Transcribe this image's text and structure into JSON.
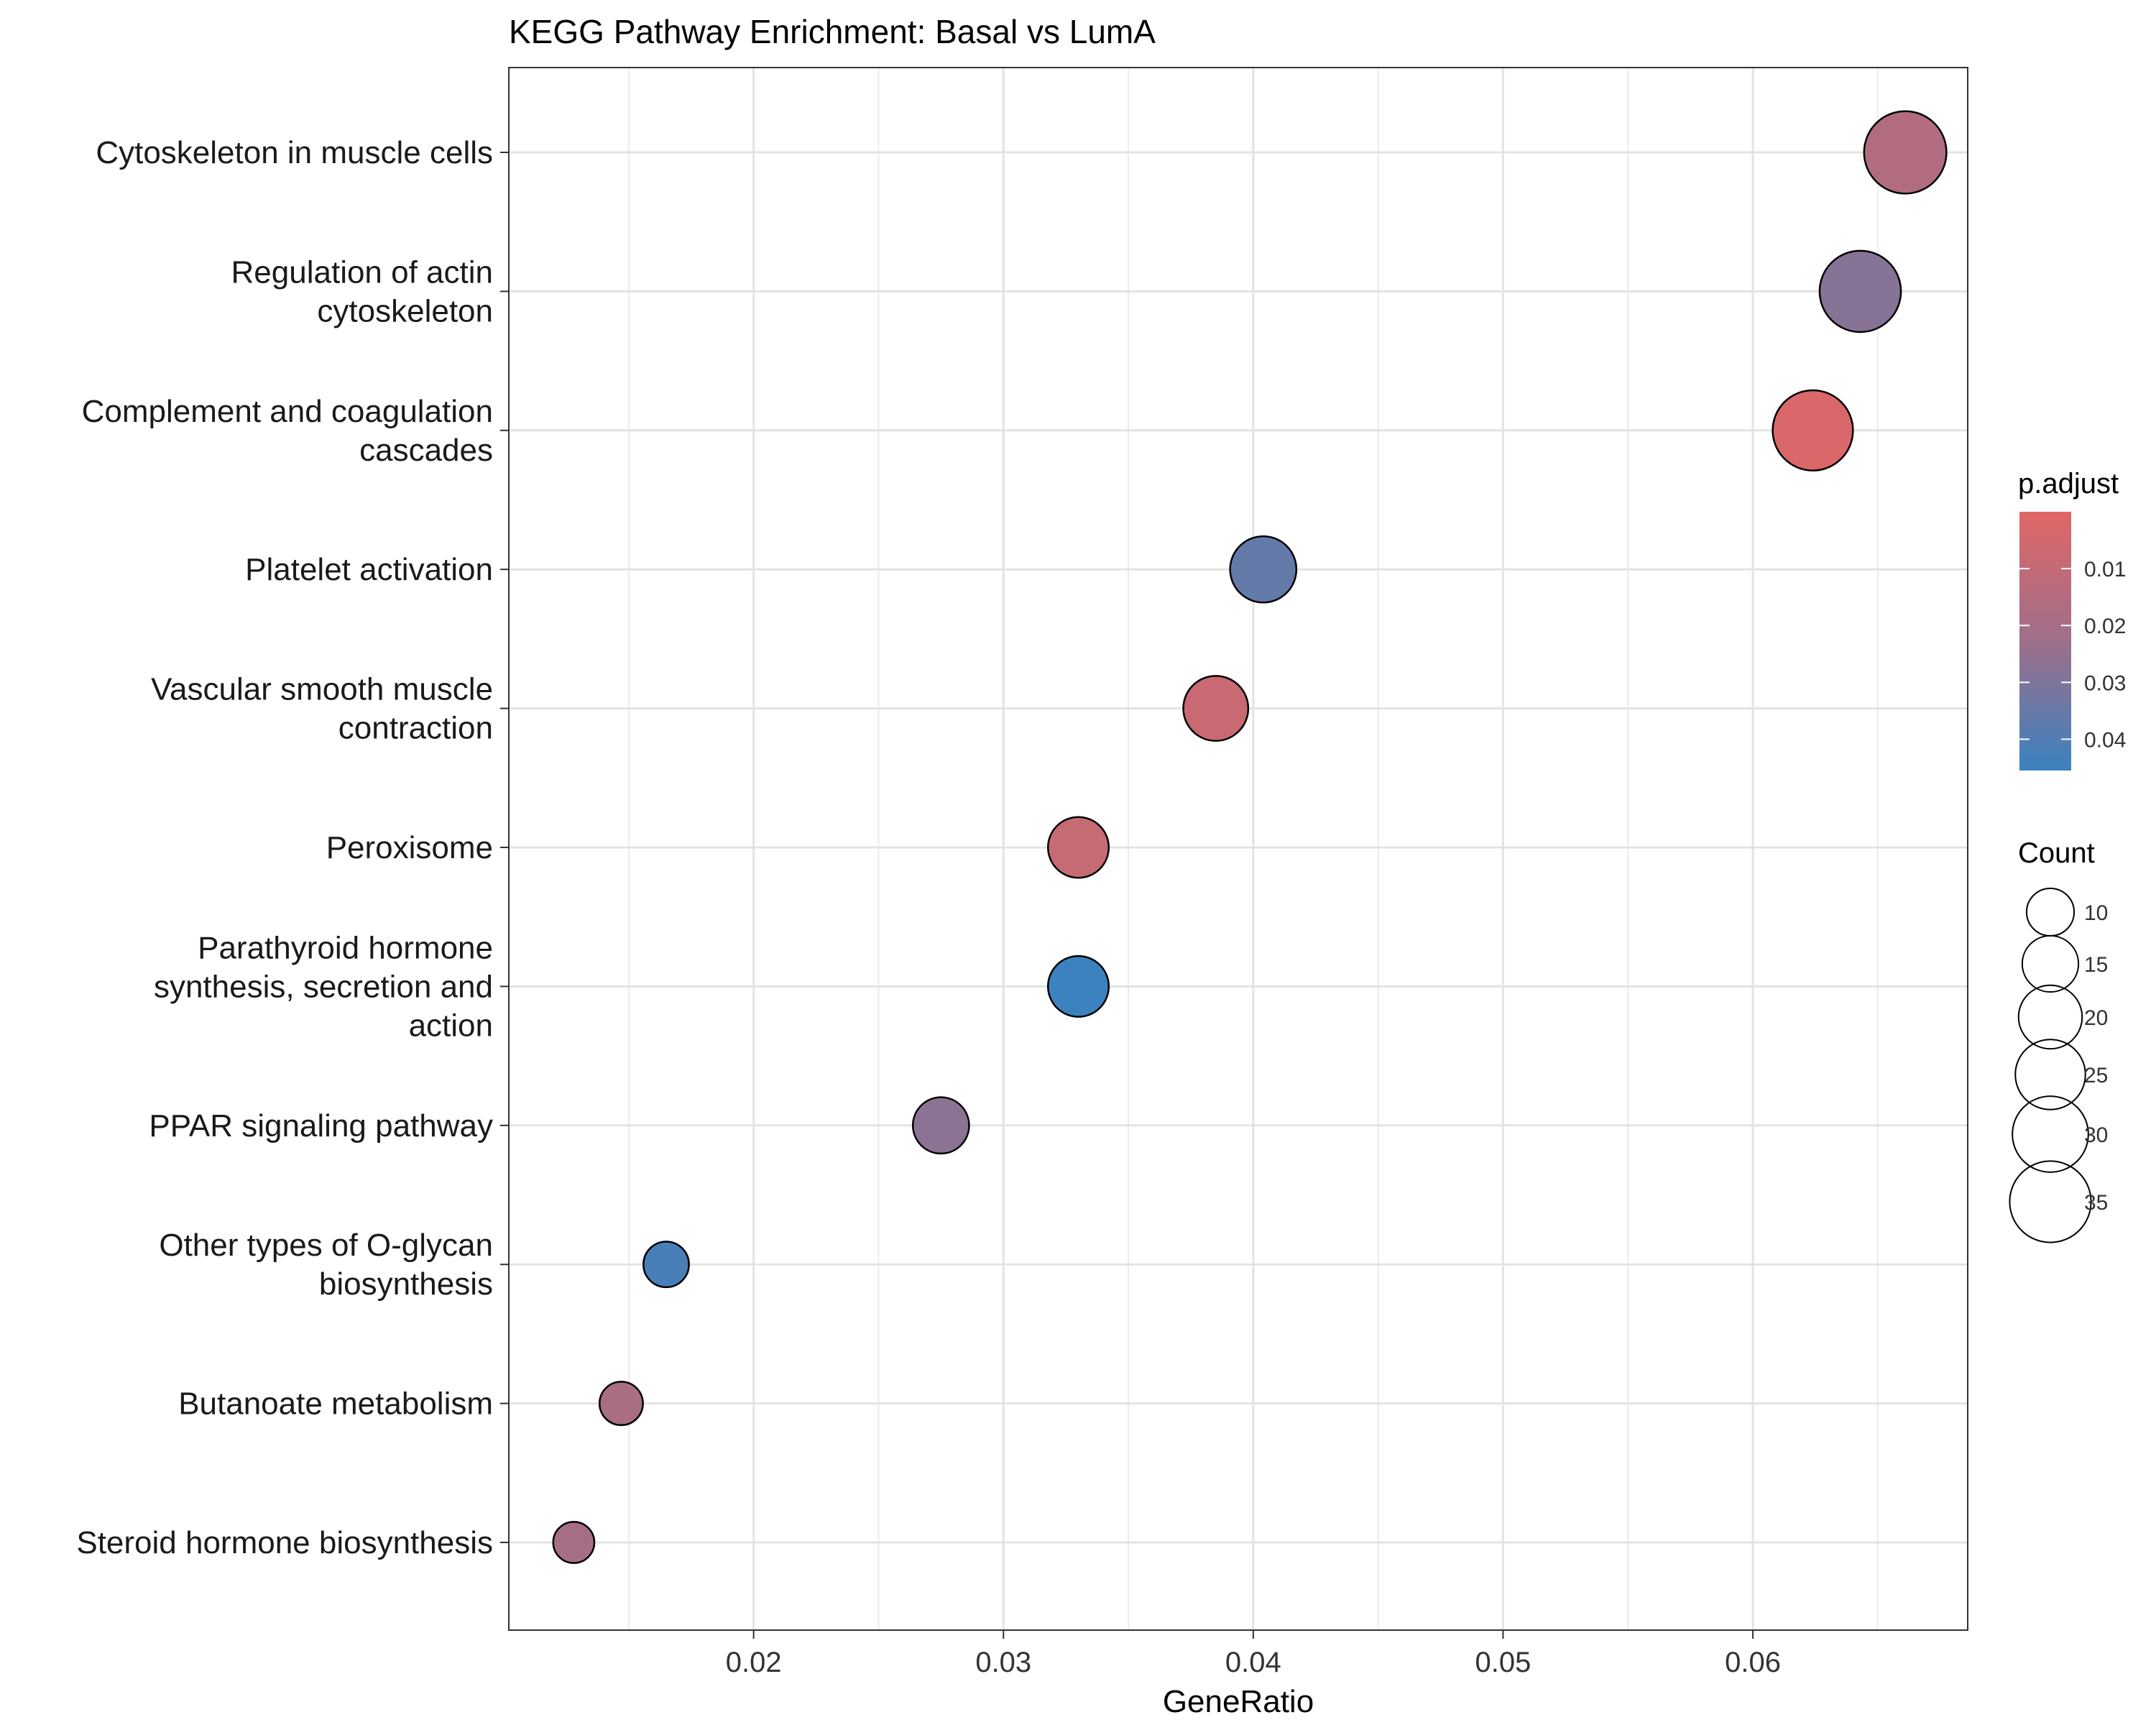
{
  "chart_data": {
    "type": "scatter",
    "title": "KEGG Pathway Enrichment: Basal vs LumA",
    "xlabel": "GeneRatio",
    "ylabel": "",
    "xlim": [
      0.0102,
      0.0686
    ],
    "x_ticks": [
      "0.02",
      "0.03",
      "0.04",
      "0.05",
      "0.06"
    ],
    "grid": true,
    "legend_position": "right",
    "categories": [
      "Cytoskeleton in muscle cells",
      "Regulation of actin\ncytoskeleton",
      "Complement and coagulation\ncascades",
      "Platelet activation",
      "Vascular smooth muscle\ncontraction",
      "Peroxisome",
      "Parathyroid hormone\nsynthesis, secretion and\naction",
      "PPAR signaling pathway",
      "Other types of O-glycan\nbiosynthesis",
      "Butanoate metabolism",
      "Steroid hormone biosynthesis"
    ],
    "points": [
      {
        "x": 0.0661,
        "count": 36,
        "p_adjust": 0.016
      },
      {
        "x": 0.0643,
        "count": 35,
        "p_adjust": 0.028
      },
      {
        "x": 0.0624,
        "count": 34,
        "p_adjust": 0.002
      },
      {
        "x": 0.0404,
        "count": 22,
        "p_adjust": 0.036
      },
      {
        "x": 0.0385,
        "count": 21,
        "p_adjust": 0.008
      },
      {
        "x": 0.033,
        "count": 18,
        "p_adjust": 0.009
      },
      {
        "x": 0.033,
        "count": 18,
        "p_adjust": 0.045
      },
      {
        "x": 0.0275,
        "count": 15,
        "p_adjust": 0.027
      },
      {
        "x": 0.0165,
        "count": 9,
        "p_adjust": 0.042
      },
      {
        "x": 0.0147,
        "count": 8,
        "p_adjust": 0.019
      },
      {
        "x": 0.0128,
        "count": 7,
        "p_adjust": 0.02
      }
    ],
    "color_legend": {
      "title": "p.adjust",
      "ticks": [
        "0.01",
        "0.02",
        "0.03",
        "0.04"
      ],
      "range": [
        0.0,
        0.0455
      ],
      "low_color": "#e06666",
      "high_color": "#3a82c0"
    },
    "size_legend": {
      "title": "Count",
      "values": [
        10,
        15,
        20,
        25,
        30,
        35
      ]
    }
  }
}
